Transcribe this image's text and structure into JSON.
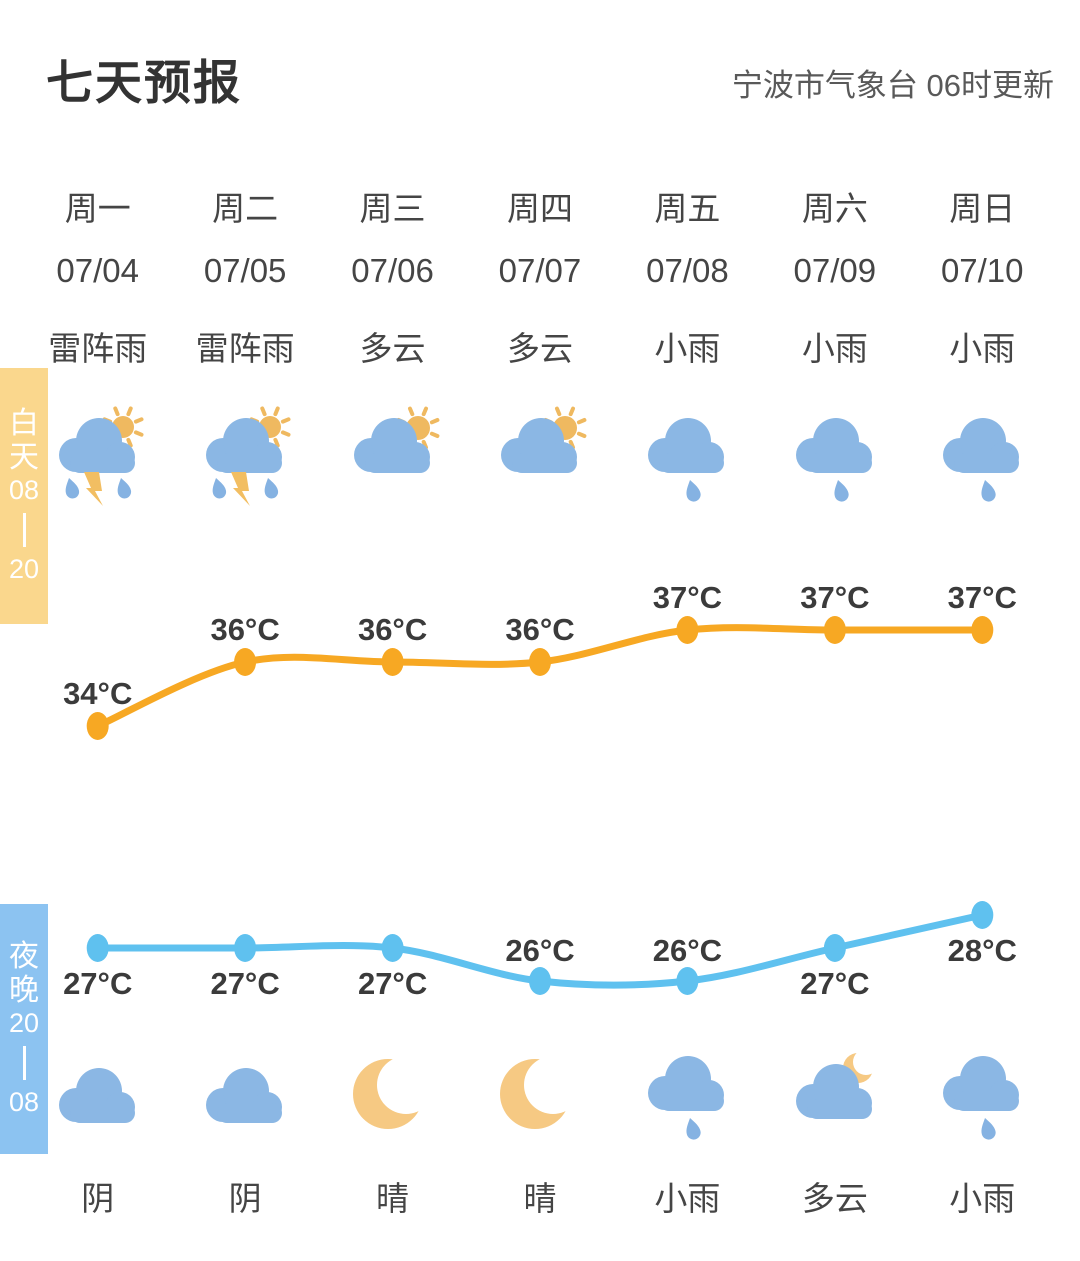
{
  "header": {
    "title": "七天预报",
    "source": "宁波市气象台 06时更新"
  },
  "day_tab": {
    "label": "白天08—20",
    "parts": [
      "白",
      "天",
      "08",
      "|",
      "20"
    ]
  },
  "night_tab": {
    "label": "夜晚20—08",
    "parts": [
      "夜",
      "晚",
      "20",
      "|",
      "08"
    ]
  },
  "forecast": {
    "temp_unit": "°C",
    "columns": [
      {
        "weekday": "周一",
        "date": "07/04",
        "day_condition": "雷阵雨",
        "day_icon": "thundershower",
        "night_icon": "cloud",
        "night_condition": "阴"
      },
      {
        "weekday": "周二",
        "date": "07/05",
        "day_condition": "雷阵雨",
        "day_icon": "thundershower",
        "night_icon": "cloud",
        "night_condition": "阴"
      },
      {
        "weekday": "周三",
        "date": "07/06",
        "day_condition": "多云",
        "day_icon": "sun-behind-cloud",
        "night_icon": "crescent-moon",
        "night_condition": "晴"
      },
      {
        "weekday": "周四",
        "date": "07/07",
        "day_condition": "多云",
        "day_icon": "sun-behind-cloud",
        "night_icon": "crescent-moon",
        "night_condition": "晴"
      },
      {
        "weekday": "周五",
        "date": "07/08",
        "day_condition": "小雨",
        "day_icon": "rain-cloud",
        "night_icon": "rain-cloud",
        "night_condition": "小雨"
      },
      {
        "weekday": "周六",
        "date": "07/09",
        "day_condition": "小雨",
        "day_icon": "rain-cloud",
        "night_icon": "moon-behind-cloud",
        "night_condition": "多云"
      },
      {
        "weekday": "周日",
        "date": "07/10",
        "day_condition": "小雨",
        "day_icon": "rain-cloud",
        "night_icon": "rain-cloud",
        "night_condition": "小雨"
      }
    ]
  },
  "chart_data": [
    {
      "type": "line",
      "name": "day-high-temperature",
      "series_label": "白天08—20",
      "categories": [
        "周一",
        "周二",
        "周三",
        "周四",
        "周五",
        "周六",
        "周日"
      ],
      "values": [
        34,
        36,
        36,
        36,
        37,
        37,
        37
      ],
      "unit": "°C",
      "color": "#F7A823",
      "legend_position": "left-vertical-tab"
    },
    {
      "type": "line",
      "name": "night-low-temperature",
      "series_label": "夜晚20—08",
      "categories": [
        "周一",
        "周二",
        "周三",
        "周四",
        "周五",
        "周六",
        "周日"
      ],
      "values": [
        27,
        27,
        27,
        26,
        26,
        27,
        28
      ],
      "unit": "°C",
      "color": "#5FC1EF",
      "legend_position": "left-vertical-tab"
    }
  ],
  "colors": {
    "day_line": "#F7A823",
    "night_line": "#5FC1EF",
    "day_tab_bg": "#FAD78D",
    "night_tab_bg": "#8CC3F1",
    "cloud": "#8BB7E4",
    "sun": "#EFB960",
    "moon": "#F6C983",
    "lightning": "#F2BE62",
    "raindrop": "#85B2E2",
    "temp_label_text": "#3B3B3B",
    "title_text": "#333333",
    "body_text": "#454545"
  }
}
